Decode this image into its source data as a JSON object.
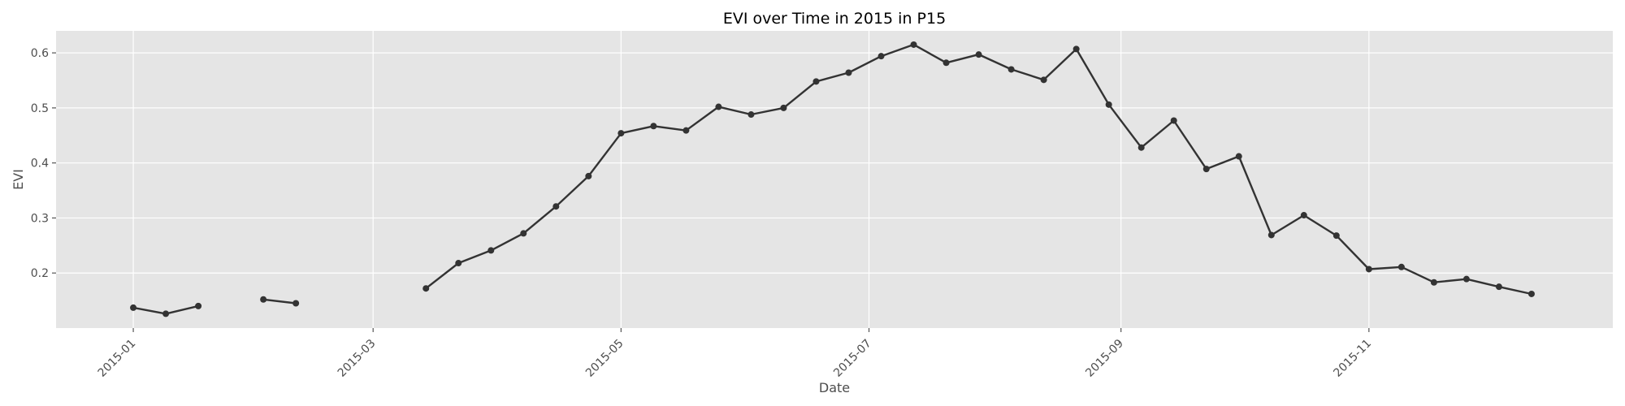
{
  "chart_data": {
    "type": "line",
    "title": "EVI over Time in 2015 in P15",
    "xlabel": "Date",
    "ylabel": "EVI",
    "xlim": [
      "2014-12-13",
      "2015-12-31"
    ],
    "ylim": [
      0.1,
      0.64
    ],
    "x_ticks": [
      "2015-01-01",
      "2015-03-01",
      "2015-05-01",
      "2015-07-01",
      "2015-09-01",
      "2015-11-01"
    ],
    "x_tick_labels": [
      "2015-01",
      "2015-03",
      "2015-05",
      "2015-07",
      "2015-09",
      "2015-11"
    ],
    "y_ticks": [
      0.2,
      0.3,
      0.4,
      0.5,
      0.6
    ],
    "y_tick_labels": [
      "0.2",
      "0.3",
      "0.4",
      "0.5",
      "0.6"
    ],
    "grid": true,
    "colors": {
      "line": "#333333",
      "plot_bg": "#e5e5e5",
      "grid": "#ffffff"
    },
    "series": [
      {
        "segments": [
          [
            {
              "x": "2015-01-01",
              "y": 0.137
            },
            {
              "x": "2015-01-09",
              "y": 0.126
            },
            {
              "x": "2015-01-17",
              "y": 0.14
            }
          ],
          [
            {
              "x": "2015-02-02",
              "y": 0.152
            },
            {
              "x": "2015-02-10",
              "y": 0.145
            }
          ],
          [
            {
              "x": "2015-03-14",
              "y": 0.172
            },
            {
              "x": "2015-03-22",
              "y": 0.218
            },
            {
              "x": "2015-03-30",
              "y": 0.241
            },
            {
              "x": "2015-04-07",
              "y": 0.272
            },
            {
              "x": "2015-04-15",
              "y": 0.321
            },
            {
              "x": "2015-04-23",
              "y": 0.376
            },
            {
              "x": "2015-05-01",
              "y": 0.454
            },
            {
              "x": "2015-05-09",
              "y": 0.467
            },
            {
              "x": "2015-05-17",
              "y": 0.459
            },
            {
              "x": "2015-05-25",
              "y": 0.502
            },
            {
              "x": "2015-06-02",
              "y": 0.488
            },
            {
              "x": "2015-06-10",
              "y": 0.5
            },
            {
              "x": "2015-06-18",
              "y": 0.548
            },
            {
              "x": "2015-06-26",
              "y": 0.564
            },
            {
              "x": "2015-07-04",
              "y": 0.594
            },
            {
              "x": "2015-07-12",
              "y": 0.615
            },
            {
              "x": "2015-07-20",
              "y": 0.582
            },
            {
              "x": "2015-07-28",
              "y": 0.597
            },
            {
              "x": "2015-08-05",
              "y": 0.57
            },
            {
              "x": "2015-08-13",
              "y": 0.551
            },
            {
              "x": "2015-08-21",
              "y": 0.607
            },
            {
              "x": "2015-08-29",
              "y": 0.506
            },
            {
              "x": "2015-09-06",
              "y": 0.428
            },
            {
              "x": "2015-09-14",
              "y": 0.477
            },
            {
              "x": "2015-09-22",
              "y": 0.389
            },
            {
              "x": "2015-09-30",
              "y": 0.412
            },
            {
              "x": "2015-10-08",
              "y": 0.269
            },
            {
              "x": "2015-10-16",
              "y": 0.305
            },
            {
              "x": "2015-10-24",
              "y": 0.268
            },
            {
              "x": "2015-11-01",
              "y": 0.207
            },
            {
              "x": "2015-11-09",
              "y": 0.211
            },
            {
              "x": "2015-11-17",
              "y": 0.183
            },
            {
              "x": "2015-11-25",
              "y": 0.189
            },
            {
              "x": "2015-12-03",
              "y": 0.175
            },
            {
              "x": "2015-12-11",
              "y": 0.162
            }
          ]
        ]
      }
    ]
  }
}
